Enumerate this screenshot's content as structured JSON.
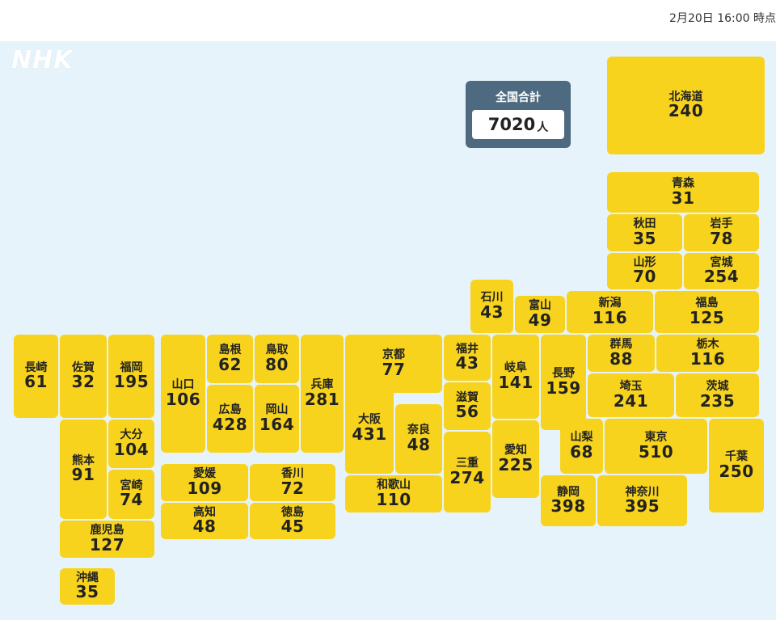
{
  "timestamp": "2月20日 16:00 時点",
  "logo": "NHK",
  "total": {
    "label": "全国合計",
    "value": "7020",
    "unit": "人"
  },
  "prefectures": [
    {
      "name": "北海道",
      "value": "240"
    },
    {
      "name": "青森",
      "value": "31"
    },
    {
      "name": "秋田",
      "value": "35"
    },
    {
      "name": "岩手",
      "value": "78"
    },
    {
      "name": "山形",
      "value": "70"
    },
    {
      "name": "宮城",
      "value": "254"
    },
    {
      "name": "石川",
      "value": "43"
    },
    {
      "name": "富山",
      "value": "49"
    },
    {
      "name": "新潟",
      "value": "116"
    },
    {
      "name": "福島",
      "value": "125"
    },
    {
      "name": "福井",
      "value": "43"
    },
    {
      "name": "岐阜",
      "value": "141"
    },
    {
      "name": "長野",
      "value": "159"
    },
    {
      "name": "群馬",
      "value": "88"
    },
    {
      "name": "栃木",
      "value": "116"
    },
    {
      "name": "埼玉",
      "value": "241"
    },
    {
      "name": "茨城",
      "value": "235"
    },
    {
      "name": "京都",
      "value": "77"
    },
    {
      "name": "滋賀",
      "value": "56"
    },
    {
      "name": "大阪",
      "value": "431"
    },
    {
      "name": "奈良",
      "value": "48"
    },
    {
      "name": "三重",
      "value": "274"
    },
    {
      "name": "愛知",
      "value": "225"
    },
    {
      "name": "山梨",
      "value": "68"
    },
    {
      "name": "東京",
      "value": "510"
    },
    {
      "name": "千葉",
      "value": "250"
    },
    {
      "name": "和歌山",
      "value": "110"
    },
    {
      "name": "静岡",
      "value": "398"
    },
    {
      "name": "神奈川",
      "value": "395"
    },
    {
      "name": "兵庫",
      "value": "281"
    },
    {
      "name": "島根",
      "value": "62"
    },
    {
      "name": "鳥取",
      "value": "80"
    },
    {
      "name": "広島",
      "value": "428"
    },
    {
      "name": "岡山",
      "value": "164"
    },
    {
      "name": "山口",
      "value": "106"
    },
    {
      "name": "愛媛",
      "value": "109"
    },
    {
      "name": "香川",
      "value": "72"
    },
    {
      "name": "高知",
      "value": "48"
    },
    {
      "name": "徳島",
      "value": "45"
    },
    {
      "name": "長崎",
      "value": "61"
    },
    {
      "name": "佐賀",
      "value": "32"
    },
    {
      "name": "福岡",
      "value": "195"
    },
    {
      "name": "大分",
      "value": "104"
    },
    {
      "name": "熊本",
      "value": "91"
    },
    {
      "name": "宮崎",
      "value": "74"
    },
    {
      "name": "鹿児島",
      "value": "127"
    },
    {
      "name": "沖縄",
      "value": "35"
    }
  ]
}
